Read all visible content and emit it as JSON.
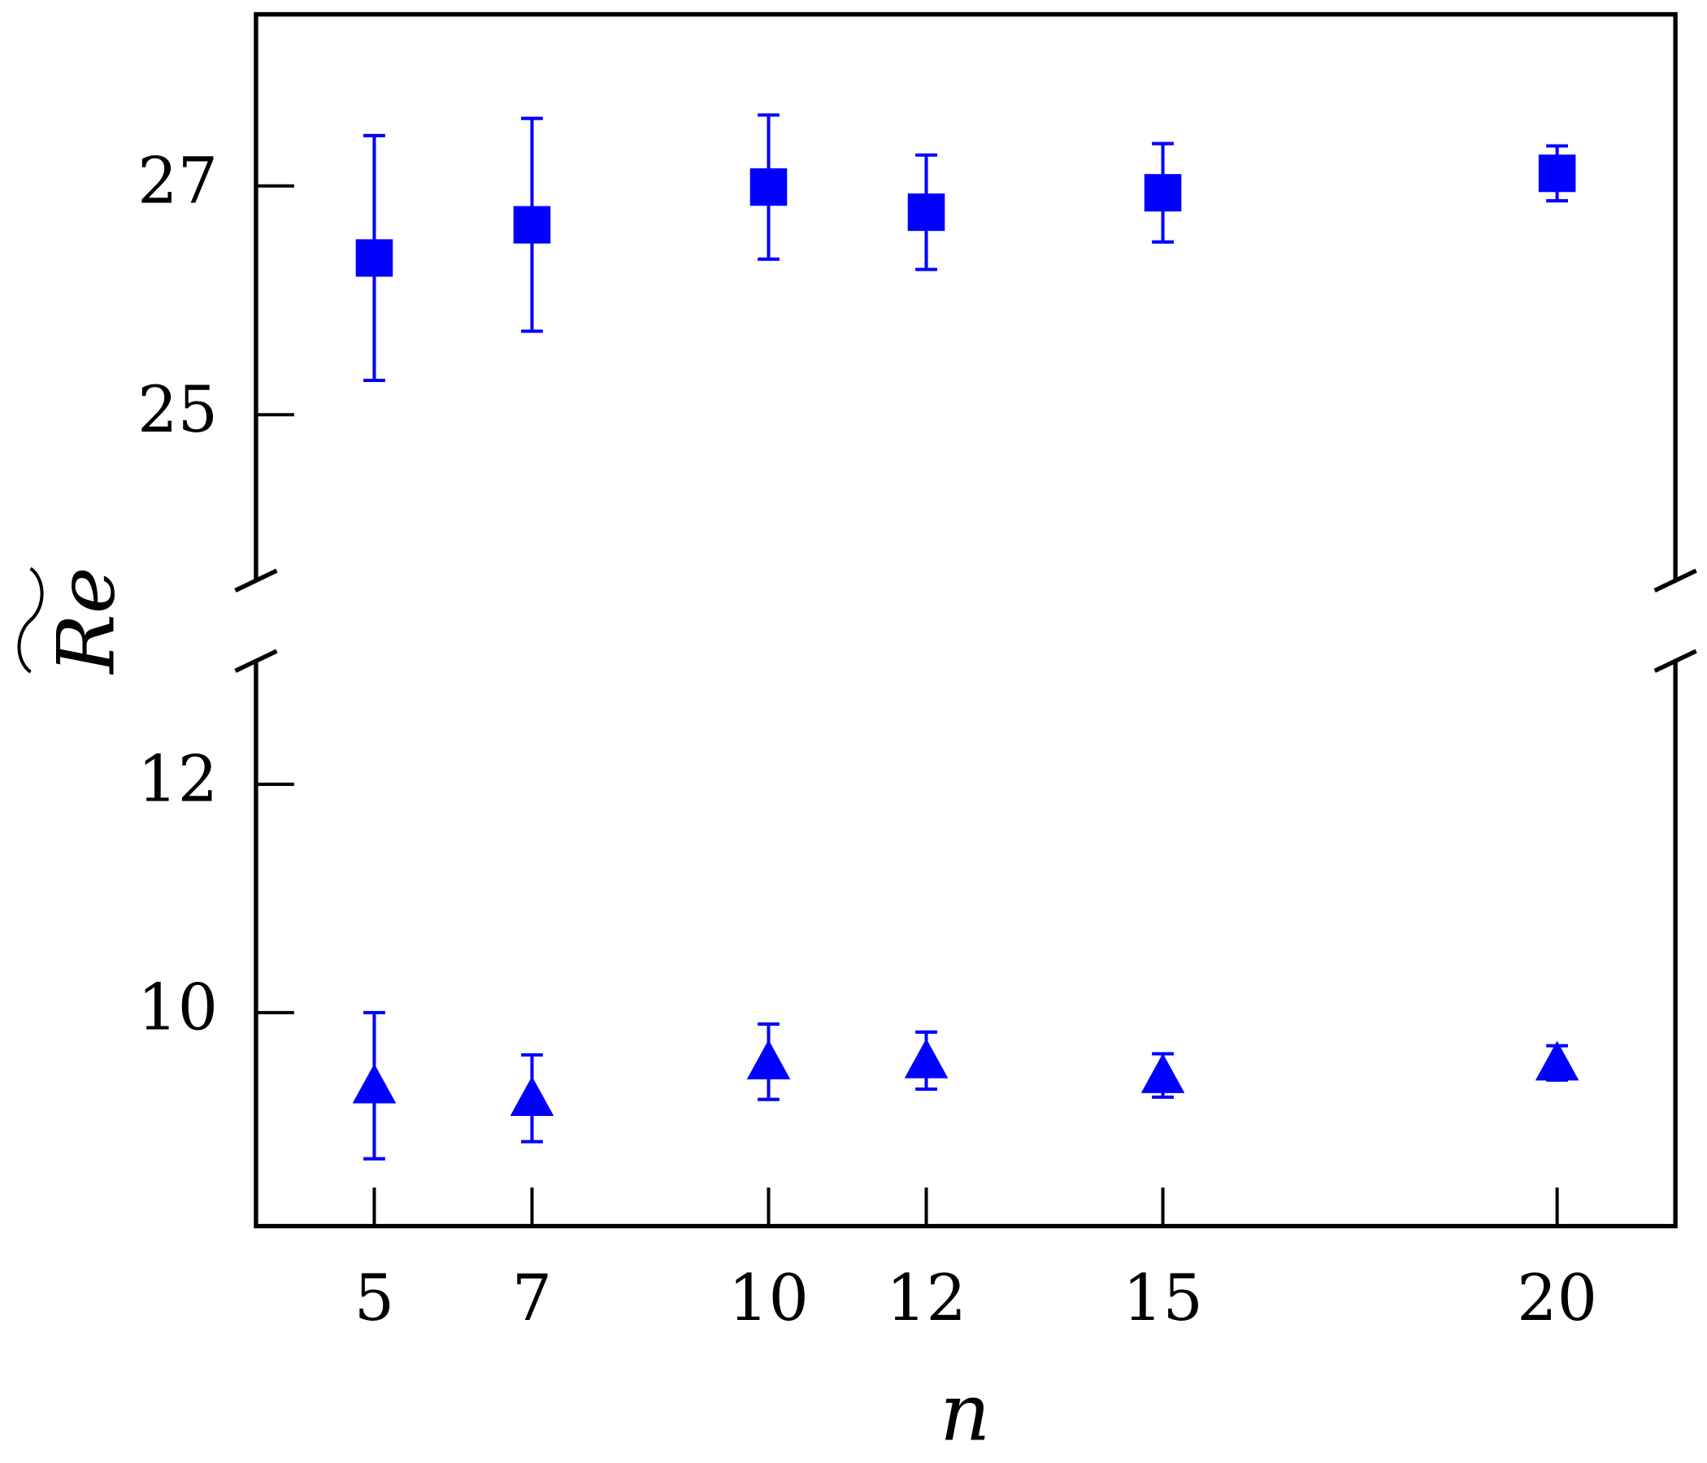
{
  "chart_data": [
    {
      "type": "errorbar",
      "marker": "square",
      "color": "#0000ff",
      "ylabel": "Re",
      "x": [
        5,
        7,
        10,
        12,
        15,
        20
      ],
      "xlim": [
        3.5,
        21.5
      ],
      "series": [
        {
          "color": "#0000ff",
          "values": [
            26.37,
            26.66,
            26.99,
            26.77,
            26.94,
            27.11
          ],
          "errors": [
            1.07,
            0.93,
            0.63,
            0.5,
            0.43,
            0.24
          ]
        }
      ],
      "ylim": [
        23.55,
        28.5
      ],
      "yticks": [
        25,
        27
      ]
    },
    {
      "type": "errorbar",
      "marker": "triangle",
      "color": "#0000ff",
      "xlabel": "n",
      "x": [
        5,
        7,
        10,
        12,
        15,
        20
      ],
      "xlim": [
        3.5,
        21.5
      ],
      "xticks": [
        5,
        7,
        10,
        12,
        15,
        20
      ],
      "series": [
        {
          "color": "#0000ff",
          "values": [
            9.36,
            9.25,
            9.57,
            9.58,
            9.45,
            9.56
          ],
          "errors": [
            0.64,
            0.38,
            0.33,
            0.25,
            0.19,
            0.15
          ]
        }
      ],
      "ylim": [
        8.13,
        13.08
      ],
      "yticks": [
        10,
        12
      ]
    }
  ]
}
